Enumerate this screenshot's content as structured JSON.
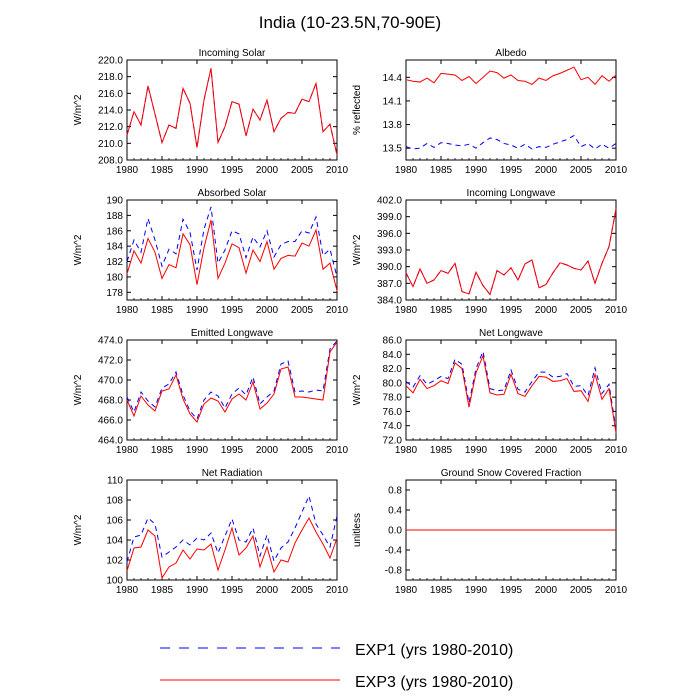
{
  "title": "India (10-23.5N,70-90E)",
  "legend": [
    {
      "label": "EXP1 (yrs 1980-2010)",
      "color": "#0000ff",
      "dash": true
    },
    {
      "label": "EXP3 (yrs 1980-2010)",
      "color": "#ff0000",
      "dash": false
    }
  ],
  "chart_data": [
    {
      "type": "line",
      "title": "Incoming Solar",
      "ylabel": "W/m^2",
      "xlim": [
        1980,
        2010
      ],
      "ylim": [
        208,
        220
      ],
      "xticks": [
        1980,
        1985,
        1990,
        1995,
        2000,
        2005,
        2010
      ],
      "xticklabels": [
        "1980",
        "1985",
        "1990",
        "1995",
        "2000",
        "2005",
        "2010"
      ],
      "yticks": [
        208,
        210,
        212,
        214,
        216,
        218,
        220
      ],
      "yticklabels": [
        "208.0",
        "210.0",
        "212.0",
        "214.0",
        "216.0",
        "218.0",
        "220.0"
      ],
      "x": [
        1980,
        1981,
        1982,
        1983,
        1984,
        1985,
        1986,
        1987,
        1988,
        1989,
        1990,
        1991,
        1992,
        1993,
        1994,
        1995,
        1996,
        1997,
        1998,
        1999,
        2000,
        2001,
        2002,
        2003,
        2004,
        2005,
        2006,
        2007,
        2008,
        2009,
        2010
      ],
      "series": [
        {
          "name": "EXP1",
          "values": [
            211.0,
            213.8,
            212.2,
            216.9,
            213.5,
            210.1,
            212.2,
            211.8,
            216.6,
            214.8,
            209.5,
            215.2,
            219.0,
            210.1,
            212.0,
            215.0,
            214.7,
            210.9,
            214.1,
            212.8,
            215.2,
            211.4,
            213.0,
            213.7,
            213.6,
            215.3,
            215.0,
            217.2,
            211.4,
            212.3,
            208.6
          ]
        },
        {
          "name": "EXP3",
          "values": [
            211.0,
            213.8,
            212.2,
            216.9,
            213.5,
            210.1,
            212.2,
            211.8,
            216.6,
            214.8,
            209.5,
            215.2,
            219.0,
            210.1,
            212.0,
            215.0,
            214.7,
            210.9,
            214.1,
            212.8,
            215.2,
            211.4,
            213.0,
            213.7,
            213.6,
            215.3,
            215.0,
            217.2,
            211.4,
            212.3,
            208.6
          ]
        }
      ]
    },
    {
      "type": "line",
      "title": "Albedo",
      "ylabel": "% reflected",
      "xlim": [
        1980,
        2010
      ],
      "ylim": [
        13.35,
        14.62
      ],
      "xticks": [
        1980,
        1985,
        1990,
        1995,
        2000,
        2005,
        2010
      ],
      "xticklabels": [
        "1980",
        "1985",
        "1990",
        "1995",
        "2000",
        "2005",
        "2010"
      ],
      "yticks": [
        13.5,
        13.8,
        14.1,
        14.4
      ],
      "yticklabels": [
        "13.5",
        "13.8",
        "14.1",
        "14.4"
      ],
      "x": [
        1980,
        1981,
        1982,
        1983,
        1984,
        1985,
        1986,
        1987,
        1988,
        1989,
        1990,
        1991,
        1992,
        1993,
        1994,
        1995,
        1996,
        1997,
        1998,
        1999,
        2000,
        2001,
        2002,
        2003,
        2004,
        2005,
        2006,
        2007,
        2008,
        2009,
        2010
      ],
      "series": [
        {
          "name": "EXP1",
          "values": [
            13.52,
            13.49,
            13.5,
            13.56,
            13.51,
            13.57,
            13.56,
            13.54,
            13.53,
            13.55,
            13.5,
            13.57,
            13.63,
            13.61,
            13.56,
            13.54,
            13.5,
            13.55,
            13.49,
            13.52,
            13.51,
            13.55,
            13.58,
            13.61,
            13.66,
            13.52,
            13.56,
            13.49,
            13.55,
            13.5,
            13.56
          ]
        },
        {
          "name": "EXP3",
          "values": [
            14.37,
            14.35,
            14.34,
            14.39,
            14.33,
            14.45,
            14.44,
            14.43,
            14.36,
            14.41,
            14.32,
            14.4,
            14.48,
            14.46,
            14.39,
            14.43,
            14.36,
            14.35,
            14.31,
            14.39,
            14.36,
            14.42,
            14.45,
            14.49,
            14.53,
            14.37,
            14.4,
            14.31,
            14.42,
            14.35,
            14.43
          ]
        }
      ]
    },
    {
      "type": "line",
      "title": "Absorbed Solar",
      "ylabel": "W/m^2",
      "xlim": [
        1980,
        2010
      ],
      "ylim": [
        177,
        190
      ],
      "xticks": [
        1980,
        1985,
        1990,
        1995,
        2000,
        2005,
        2010
      ],
      "xticklabels": [
        "1980",
        "1985",
        "1990",
        "1995",
        "2000",
        "2005",
        "2010"
      ],
      "yticks": [
        178,
        180,
        182,
        184,
        186,
        188,
        190
      ],
      "yticklabels": [
        "178",
        "180",
        "182",
        "184",
        "186",
        "188",
        "190"
      ],
      "x": [
        1980,
        1981,
        1982,
        1983,
        1984,
        1985,
        1986,
        1987,
        1988,
        1989,
        1990,
        1991,
        1992,
        1993,
        1994,
        1995,
        1996,
        1997,
        1998,
        1999,
        2000,
        2001,
        2002,
        2003,
        2004,
        2005,
        2006,
        2007,
        2008,
        2009,
        2010
      ],
      "series": [
        {
          "name": "EXP1",
          "values": [
            182.0,
            184.8,
            183.2,
            187.6,
            184.8,
            181.4,
            183.6,
            183.0,
            187.5,
            185.8,
            180.9,
            186.2,
            189.1,
            181.8,
            183.5,
            186.0,
            185.6,
            182.5,
            185.2,
            183.9,
            186.0,
            182.6,
            184.2,
            184.6,
            184.6,
            186.0,
            185.7,
            187.8,
            182.8,
            183.6,
            180.0
          ]
        },
        {
          "name": "EXP3",
          "values": [
            180.4,
            183.4,
            181.8,
            185.0,
            183.2,
            179.8,
            181.6,
            181.2,
            185.6,
            184.2,
            179.0,
            183.8,
            187.4,
            179.8,
            181.8,
            184.3,
            183.8,
            180.5,
            183.5,
            182.0,
            184.6,
            181.0,
            182.4,
            182.8,
            182.7,
            184.4,
            184.0,
            186.1,
            181.0,
            181.8,
            178.2
          ]
        }
      ]
    },
    {
      "type": "line",
      "title": "Incoming Longwave",
      "ylabel": "W/m^2",
      "xlim": [
        1980,
        2010
      ],
      "ylim": [
        384,
        402
      ],
      "xticks": [
        1980,
        1985,
        1990,
        1995,
        2000,
        2005,
        2010
      ],
      "xticklabels": [
        "1980",
        "1985",
        "1990",
        "1995",
        "2000",
        "2005",
        "2010"
      ],
      "yticks": [
        384,
        387,
        390,
        393,
        396,
        399,
        402
      ],
      "yticklabels": [
        "384.0",
        "387.0",
        "390.0",
        "393.0",
        "396.0",
        "399.0",
        "402.0"
      ],
      "x": [
        1980,
        1981,
        1982,
        1983,
        1984,
        1985,
        1986,
        1987,
        1988,
        1989,
        1990,
        1991,
        1992,
        1993,
        1994,
        1995,
        1996,
        1997,
        1998,
        1999,
        2000,
        2001,
        2002,
        2003,
        2004,
        2005,
        2006,
        2007,
        2008,
        2009,
        2010
      ],
      "series": [
        {
          "name": "EXP1",
          "values": [
            388.9,
            386.4,
            389.6,
            387.0,
            387.6,
            389.3,
            388.8,
            390.6,
            385.5,
            385.1,
            389.0,
            386.6,
            385.0,
            389.3,
            388.5,
            389.8,
            387.6,
            390.5,
            391.2,
            386.2,
            386.8,
            388.9,
            390.7,
            390.3,
            389.7,
            389.4,
            391.0,
            387.0,
            390.6,
            393.6,
            400.4
          ]
        },
        {
          "name": "EXP3",
          "values": [
            388.9,
            386.4,
            389.6,
            387.0,
            387.6,
            389.3,
            388.8,
            390.6,
            385.5,
            385.1,
            389.0,
            386.6,
            385.0,
            389.3,
            388.5,
            389.8,
            387.6,
            390.5,
            391.2,
            386.2,
            386.8,
            388.9,
            390.7,
            390.3,
            389.7,
            389.4,
            391.0,
            387.0,
            390.6,
            393.6,
            400.4
          ]
        }
      ]
    },
    {
      "type": "line",
      "title": "Emitted Longwave",
      "ylabel": "W/m^2",
      "xlim": [
        1980,
        2010
      ],
      "ylim": [
        464,
        474
      ],
      "xticks": [
        1980,
        1985,
        1990,
        1995,
        2000,
        2005,
        2010
      ],
      "xticklabels": [
        "1980",
        "1985",
        "1990",
        "1995",
        "2000",
        "2005",
        "2010"
      ],
      "yticks": [
        464,
        466,
        468,
        470,
        472,
        474
      ],
      "yticklabels": [
        "464.0",
        "466.0",
        "468.0",
        "470.0",
        "472.0",
        "474.0"
      ],
      "x": [
        1980,
        1981,
        1982,
        1983,
        1984,
        1985,
        1986,
        1987,
        1988,
        1989,
        1990,
        1991,
        1992,
        1993,
        1994,
        1995,
        1996,
        1997,
        1998,
        1999,
        2000,
        2001,
        2002,
        2003,
        2004,
        2005,
        2006,
        2007,
        2008,
        2009,
        2010
      ],
      "series": [
        {
          "name": "EXP1",
          "values": [
            468.3,
            466.8,
            468.8,
            467.9,
            467.3,
            469.2,
            469.6,
            470.8,
            468.5,
            466.9,
            466.1,
            468.0,
            468.8,
            468.4,
            467.2,
            468.6,
            469.2,
            468.5,
            470.3,
            467.6,
            468.3,
            468.9,
            471.6,
            471.9,
            468.8,
            468.9,
            468.8,
            469.0,
            468.9,
            473.1,
            473.9
          ]
        },
        {
          "name": "EXP3",
          "values": [
            468.0,
            466.4,
            468.4,
            467.5,
            466.9,
            468.9,
            469.1,
            470.5,
            468.1,
            466.6,
            465.8,
            467.6,
            468.2,
            467.9,
            466.8,
            468.1,
            468.6,
            468.0,
            469.8,
            467.1,
            467.7,
            468.6,
            471.1,
            471.3,
            468.3,
            468.3,
            468.2,
            468.1,
            468.0,
            472.8,
            473.8
          ]
        }
      ]
    },
    {
      "type": "line",
      "title": "Net Longwave",
      "ylabel": "W/m^2",
      "xlim": [
        1980,
        2010
      ],
      "ylim": [
        72,
        86
      ],
      "xticks": [
        1980,
        1985,
        1990,
        1995,
        2000,
        2005,
        2010
      ],
      "xticklabels": [
        "1980",
        "1985",
        "1990",
        "1995",
        "2000",
        "2005",
        "2010"
      ],
      "yticks": [
        72,
        74,
        76,
        78,
        80,
        82,
        84,
        86
      ],
      "yticklabels": [
        "72.0",
        "74.0",
        "76.0",
        "78.0",
        "80.0",
        "82.0",
        "84.0",
        "86.0"
      ],
      "x": [
        1980,
        1981,
        1982,
        1983,
        1984,
        1985,
        1986,
        1987,
        1988,
        1989,
        1990,
        1991,
        1992,
        1993,
        1994,
        1995,
        1996,
        1997,
        1998,
        1999,
        2000,
        2001,
        2002,
        2003,
        2004,
        2005,
        2006,
        2007,
        2008,
        2009,
        2010
      ],
      "series": [
        {
          "name": "EXP1",
          "values": [
            80.2,
            79.4,
            81.0,
            79.8,
            80.3,
            80.9,
            80.6,
            83.3,
            82.6,
            77.2,
            82.0,
            84.4,
            79.2,
            78.9,
            79.0,
            81.8,
            79.1,
            78.7,
            80.2,
            81.5,
            81.5,
            80.8,
            80.9,
            81.3,
            79.5,
            79.6,
            78.2,
            82.1,
            78.5,
            79.8,
            73.5
          ]
        },
        {
          "name": "EXP3",
          "values": [
            79.6,
            78.6,
            80.5,
            79.2,
            79.6,
            80.3,
            79.9,
            82.8,
            82.0,
            76.6,
            81.4,
            83.8,
            78.6,
            78.3,
            78.4,
            81.2,
            78.5,
            78.1,
            79.6,
            80.9,
            80.8,
            80.2,
            80.3,
            80.6,
            78.8,
            78.9,
            77.4,
            81.2,
            77.7,
            79.2,
            73.0
          ]
        }
      ]
    },
    {
      "type": "line",
      "title": "Net Radiation",
      "ylabel": "W/m^2",
      "xlim": [
        1980,
        2010
      ],
      "ylim": [
        100,
        110
      ],
      "xticks": [
        1980,
        1985,
        1990,
        1995,
        2000,
        2005,
        2010
      ],
      "xticklabels": [
        "1980",
        "1985",
        "1990",
        "1995",
        "2000",
        "2005",
        "2010"
      ],
      "yticks": [
        100,
        102,
        104,
        106,
        108,
        110
      ],
      "yticklabels": [
        "100",
        "102",
        "104",
        "106",
        "108",
        "110"
      ],
      "x": [
        1980,
        1981,
        1982,
        1983,
        1984,
        1985,
        1986,
        1987,
        1988,
        1989,
        1990,
        1991,
        1992,
        1993,
        1994,
        1995,
        1996,
        1997,
        1998,
        1999,
        2000,
        2001,
        2002,
        2003,
        2004,
        2005,
        2006,
        2007,
        2008,
        2009,
        2010
      ],
      "series": [
        {
          "name": "EXP1",
          "values": [
            101.8,
            104.3,
            104.5,
            106.2,
            105.6,
            102.3,
            102.8,
            103.3,
            104.0,
            103.5,
            104.2,
            104.0,
            104.7,
            102.7,
            104.4,
            106.1,
            104.0,
            103.8,
            105.2,
            102.4,
            104.5,
            101.9,
            103.2,
            103.8,
            105.2,
            106.8,
            108.4,
            105.6,
            104.5,
            103.3,
            106.4
          ]
        },
        {
          "name": "EXP3",
          "values": [
            100.9,
            103.2,
            103.3,
            105.0,
            104.4,
            100.2,
            101.3,
            101.7,
            103.0,
            102.1,
            103.1,
            103.0,
            103.6,
            101.0,
            103.0,
            105.2,
            102.5,
            103.2,
            104.4,
            101.3,
            103.3,
            100.8,
            102.0,
            101.8,
            103.7,
            105.0,
            106.2,
            104.8,
            103.6,
            102.2,
            104.2
          ]
        }
      ]
    },
    {
      "type": "line",
      "title": "Ground Snow Covered Fraction",
      "ylabel": "unitless",
      "xlim": [
        1980,
        2010
      ],
      "ylim": [
        -1.0,
        1.0
      ],
      "xticks": [
        1980,
        1985,
        1990,
        1995,
        2000,
        2005,
        2010
      ],
      "xticklabels": [
        "1980",
        "1985",
        "1990",
        "1995",
        "2000",
        "2005",
        "2010"
      ],
      "yticks": [
        -0.8,
        -0.4,
        0.0,
        0.4,
        0.8
      ],
      "yticklabels": [
        "-0.8",
        "-0.4",
        "0.0",
        "0.4",
        "0.8"
      ],
      "x": [
        1980,
        2010
      ],
      "series": [
        {
          "name": "EXP1",
          "values": [
            0.0,
            0.0
          ]
        },
        {
          "name": "EXP3",
          "values": [
            0.0,
            0.0
          ]
        }
      ]
    }
  ]
}
